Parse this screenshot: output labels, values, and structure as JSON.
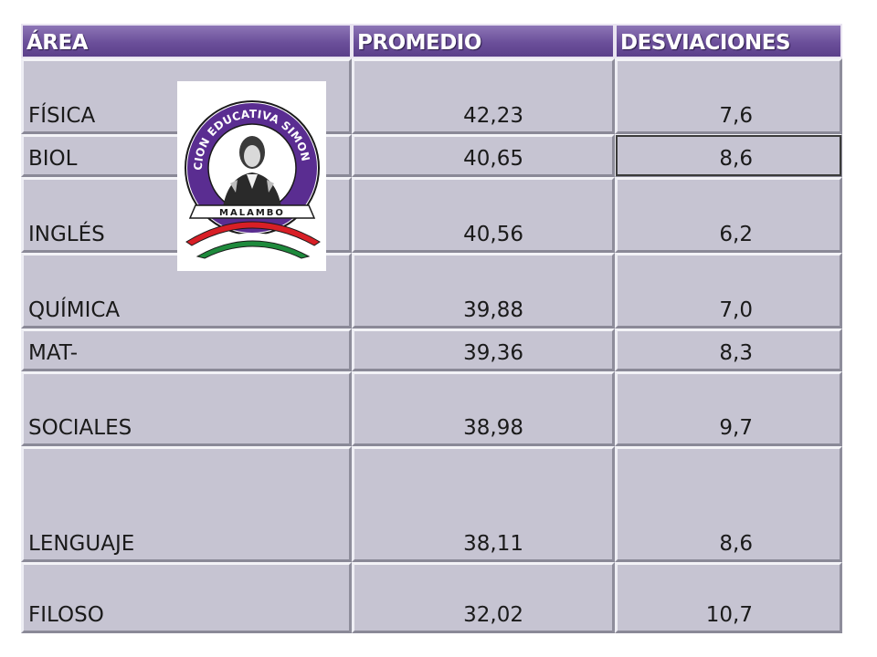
{
  "table": {
    "headers": [
      "ÁREA",
      "PROMEDIO",
      "DESVIACIONES"
    ],
    "rows": [
      {
        "area": "FÍSICA",
        "promedio": "42,23",
        "desviacion": "7,6"
      },
      {
        "area": "BIOL",
        "promedio": "40,65",
        "desviacion": "8,6"
      },
      {
        "area": "INGLÉS",
        "promedio": "40,56",
        "desviacion": "6,2"
      },
      {
        "area": "QUÍMICA",
        "promedio": "39,88",
        "desviacion": "7,0"
      },
      {
        "area": "MAT-",
        "promedio": "39,36",
        "desviacion": "8,3"
      },
      {
        "area": "SOCIALES",
        "promedio": "38,98",
        "desviacion": "9,7"
      },
      {
        "area": "LENGUAJE",
        "promedio": "38,11",
        "desviacion": "8,6"
      },
      {
        "area": "FILOSO",
        "promedio": "32,02",
        "desviacion": "10,7"
      }
    ]
  },
  "logo": {
    "ring_text": "INSTITUCION EDUCATIVA SIMON BOLIVAR",
    "town": "MALAMBO",
    "colors": {
      "ring": "#5a2d91",
      "red": "#d81f26",
      "green": "#1e8a3c"
    }
  }
}
